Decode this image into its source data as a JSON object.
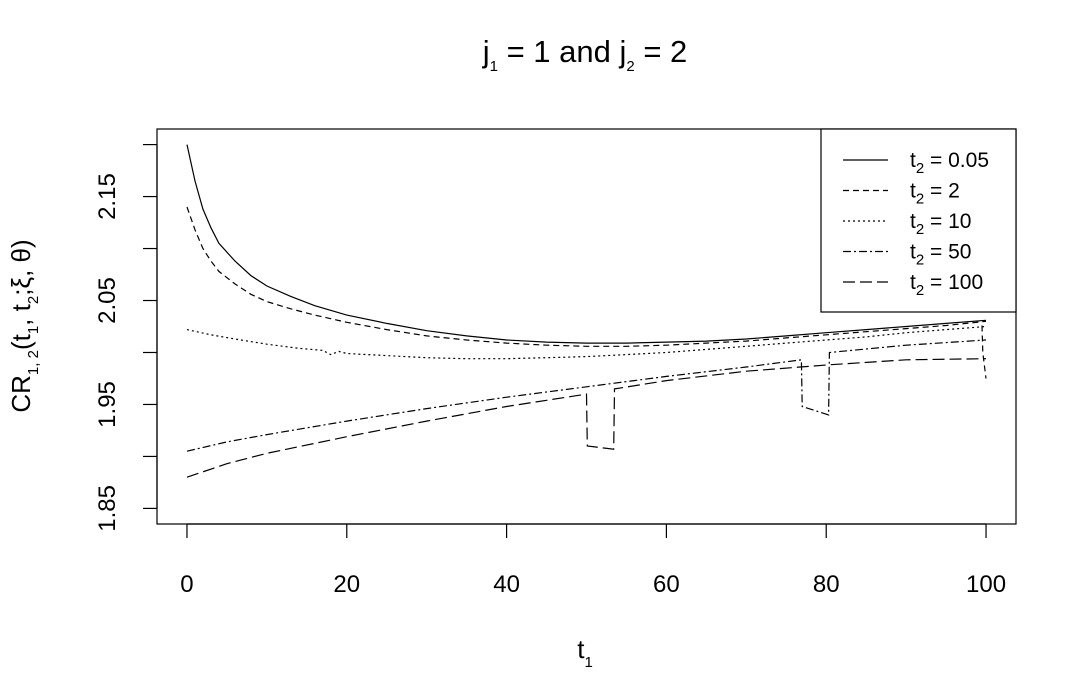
{
  "chart_data": {
    "type": "line",
    "title": {
      "main": "j",
      "sub1": "1",
      "mid": " = 1 and j",
      "sub2": "2",
      "end": " = 2"
    },
    "xlabel": {
      "main": "t",
      "sub": "1"
    },
    "ylabel": {
      "main": "CR",
      "sub": "1, 2",
      "rest1": "(t",
      "rest2": ", t",
      "rest3": ";ξ, θ)"
    },
    "xlim": [
      -3.75,
      103.75
    ],
    "ylim": [
      1.835,
      2.215
    ],
    "x_ticks": [
      0,
      20,
      40,
      60,
      80,
      100
    ],
    "x_tick_labels": [
      "0",
      "20",
      "40",
      "60",
      "80",
      "100"
    ],
    "y_ticks": [
      1.85,
      1.95,
      2.05,
      2.15
    ],
    "y_tick_labels": [
      "1.85",
      "1.95",
      "2.05",
      "2.15"
    ],
    "y_minor_ticks": [
      1.9,
      2.0,
      2.1,
      2.2
    ],
    "grid": false,
    "legend_position": "top-right",
    "series": [
      {
        "name": "t2 = 0.05",
        "label_main": "t",
        "label_sub": "2",
        "label_value": " = 0.05",
        "dash": "none",
        "x": [
          0,
          1,
          2,
          3,
          4,
          6,
          8,
          10,
          13,
          16,
          20,
          25,
          30,
          35,
          40,
          45,
          50,
          55,
          60,
          65,
          70,
          75,
          80,
          85,
          90,
          95,
          100
        ],
        "y": [
          2.2,
          2.165,
          2.138,
          2.12,
          2.105,
          2.088,
          2.074,
          2.064,
          2.054,
          2.045,
          2.036,
          2.028,
          2.021,
          2.016,
          2.012,
          2.01,
          2.009,
          2.009,
          2.01,
          2.011,
          2.013,
          2.016,
          2.019,
          2.022,
          2.025,
          2.028,
          2.031
        ]
      },
      {
        "name": "t2 = 2",
        "label_main": "t",
        "label_sub": "2",
        "label_value": " = 2",
        "dash": "6,4",
        "x": [
          0,
          1,
          2,
          3,
          4,
          6,
          8,
          10,
          13,
          16,
          20,
          25,
          30,
          35,
          40,
          45,
          50,
          55,
          60,
          65,
          70,
          75,
          80,
          85,
          90,
          95,
          100
        ],
        "y": [
          2.14,
          2.118,
          2.1,
          2.088,
          2.078,
          2.066,
          2.056,
          2.049,
          2.042,
          2.036,
          2.029,
          2.022,
          2.016,
          2.012,
          2.009,
          2.007,
          2.006,
          2.006,
          2.007,
          2.009,
          2.011,
          2.014,
          2.017,
          2.02,
          2.023,
          2.026,
          2.03
        ]
      },
      {
        "name": "t2 = 10",
        "label_main": "t",
        "label_sub": "2",
        "label_value": " = 10",
        "dash": "2,3",
        "x": [
          0,
          3,
          6,
          10,
          14,
          17,
          18,
          19,
          20,
          25,
          30,
          35,
          40,
          45,
          50,
          55,
          60,
          65,
          70,
          75,
          80,
          85,
          90,
          95,
          100
        ],
        "y": [
          2.022,
          2.017,
          2.013,
          2.008,
          2.004,
          2.002,
          1.998,
          2.001,
          1.999,
          1.997,
          1.995,
          1.994,
          1.994,
          1.995,
          1.996,
          1.998,
          2.0,
          2.003,
          2.006,
          2.009,
          2.012,
          2.015,
          2.019,
          2.022,
          2.025
        ]
      },
      {
        "name": "t2 = 50",
        "label_main": "t",
        "label_sub": "2",
        "label_value": " = 50",
        "dash": "8,3,2,3",
        "x": [
          0,
          5,
          10,
          20,
          30,
          40,
          50,
          60,
          70,
          76.9,
          77,
          80.3,
          80.4,
          90,
          99.9,
          100
        ],
        "y": [
          1.905,
          1.914,
          1.921,
          1.934,
          1.946,
          1.957,
          1.967,
          1.977,
          1.986,
          1.993,
          1.948,
          1.94,
          2.0,
          2.007,
          2.012,
          2.012
        ]
      },
      {
        "name": "t2 = 100",
        "label_main": "t",
        "label_sub": "2",
        "label_value": " = 100",
        "dash": "12,5",
        "x": [
          0,
          5,
          10,
          20,
          30,
          40,
          50,
          50.1,
          53.4,
          53.5,
          60,
          70,
          80,
          90,
          100
        ],
        "y": [
          1.88,
          1.893,
          1.903,
          1.919,
          1.934,
          1.948,
          1.96,
          1.91,
          1.907,
          1.965,
          1.973,
          1.982,
          1.988,
          1.993,
          1.994
        ]
      }
    ],
    "series_tail": {
      "series": "t2 = 2",
      "x": [
        99.5,
        99.6,
        100
      ],
      "y": [
        2.026,
        2.0,
        1.975
      ]
    }
  }
}
